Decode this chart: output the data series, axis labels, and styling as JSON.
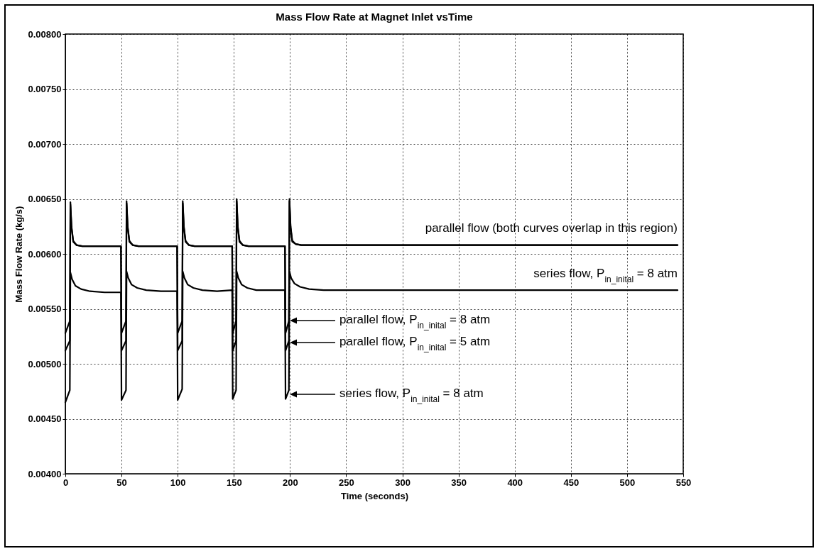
{
  "chart_data": {
    "type": "line",
    "title": "Mass Flow Rate at Magnet Inlet vsTime",
    "xlabel": "Time (seconds)",
    "ylabel": "Mass Flow Rate (kg/s)",
    "xlim": [
      0,
      550
    ],
    "xticks": [
      0,
      50,
      100,
      150,
      200,
      250,
      300,
      350,
      400,
      450,
      500,
      550
    ],
    "ylim": [
      0.004,
      0.008
    ],
    "yticks": [
      {
        "value": 0.004,
        "label": "0.00400"
      },
      {
        "value": 0.0045,
        "label": "0.00450"
      },
      {
        "value": 0.005,
        "label": "0.00500"
      },
      {
        "value": 0.0055,
        "label": "0.00550"
      },
      {
        "value": 0.006,
        "label": "0.00600"
      },
      {
        "value": 0.0065,
        "label": "0.00650"
      },
      {
        "value": 0.007,
        "label": "0.00700"
      },
      {
        "value": 0.0075,
        "label": "0.00750"
      },
      {
        "value": 0.008,
        "label": "0.00800"
      }
    ],
    "grid": true,
    "marker": "none",
    "line_style": "solid",
    "series": [
      {
        "color": "#000000",
        "x": [
          0,
          4,
          4.5,
          5.5,
          7,
          10,
          15,
          49.5,
          50,
          54,
          54.5,
          55.5,
          57,
          60,
          65,
          99.5,
          100,
          104,
          104.5,
          105.5,
          107,
          110,
          115,
          148.5,
          149,
          152,
          152.5,
          153.5,
          155,
          158,
          163,
          195.5,
          196,
          199,
          199.5,
          200.5,
          202,
          205,
          210,
          545
        ],
        "values": [
          0.00528,
          0.00539,
          0.00647,
          0.00625,
          0.00612,
          0.00608,
          0.00607,
          0.00607,
          0.00528,
          0.00539,
          0.00648,
          0.00625,
          0.00612,
          0.00608,
          0.00607,
          0.00607,
          0.00528,
          0.00539,
          0.00648,
          0.00625,
          0.00612,
          0.00608,
          0.00607,
          0.00607,
          0.00528,
          0.00539,
          0.0065,
          0.00625,
          0.00612,
          0.00608,
          0.00607,
          0.00607,
          0.00528,
          0.00539,
          0.0065,
          0.00625,
          0.00612,
          0.00609,
          0.00608,
          0.00608
        ]
      },
      {
        "color": "#000000",
        "x": [
          0,
          4,
          4.5,
          5.5,
          7,
          10,
          15,
          49.5,
          50,
          54,
          54.5,
          55.5,
          57,
          60,
          65,
          99.5,
          100,
          104,
          104.5,
          105.5,
          107,
          110,
          115,
          148.5,
          149,
          152,
          152.5,
          153.5,
          155,
          158,
          163,
          195.5,
          196,
          199,
          199.5,
          200.5,
          202,
          205,
          210,
          545
        ],
        "values": [
          0.00512,
          0.00521,
          0.00645,
          0.00624,
          0.00611,
          0.00608,
          0.00607,
          0.00607,
          0.00512,
          0.00521,
          0.00646,
          0.00624,
          0.00611,
          0.00608,
          0.00607,
          0.00607,
          0.00512,
          0.00521,
          0.00646,
          0.00624,
          0.00611,
          0.00608,
          0.00607,
          0.00607,
          0.00512,
          0.00521,
          0.00648,
          0.00624,
          0.00611,
          0.00608,
          0.00607,
          0.00607,
          0.00512,
          0.00521,
          0.00648,
          0.00624,
          0.00611,
          0.00609,
          0.00608,
          0.00608
        ]
      },
      {
        "color": "#000000",
        "x": [
          0,
          4,
          4.5,
          6,
          9,
          14,
          22,
          35,
          49.5,
          50,
          54,
          54.5,
          56,
          59,
          64,
          72,
          85,
          99.5,
          100,
          104,
          104.5,
          106,
          109,
          114,
          122,
          135,
          148.5,
          149,
          152,
          152.5,
          154,
          157,
          162,
          170,
          195.5,
          196,
          199,
          199.5,
          201,
          204,
          209,
          217,
          230,
          545
        ],
        "values": [
          0.00465,
          0.00476,
          0.00583,
          0.00577,
          0.00571,
          0.00568,
          0.00566,
          0.00565,
          0.00565,
          0.00467,
          0.00476,
          0.00584,
          0.00578,
          0.00572,
          0.00569,
          0.00567,
          0.00566,
          0.00566,
          0.00467,
          0.00477,
          0.00584,
          0.00578,
          0.00572,
          0.00569,
          0.00567,
          0.00566,
          0.00567,
          0.00468,
          0.00476,
          0.00584,
          0.00578,
          0.00572,
          0.00569,
          0.00567,
          0.00567,
          0.00468,
          0.00476,
          0.00584,
          0.00578,
          0.00573,
          0.0057,
          0.00568,
          0.00567,
          0.00567
        ]
      }
    ],
    "annotations": [
      "parallel flow (both curves overlap in this region)",
      "series flow, P$_{in_inital}$ = 8 atm",
      "parallel flow, P$_{in_inital}$ = 8 atm",
      "parallel flow, P$_{in_inital}$ = 5 atm",
      "series flow, P$_{in_inital}$ = 8 atm"
    ]
  }
}
